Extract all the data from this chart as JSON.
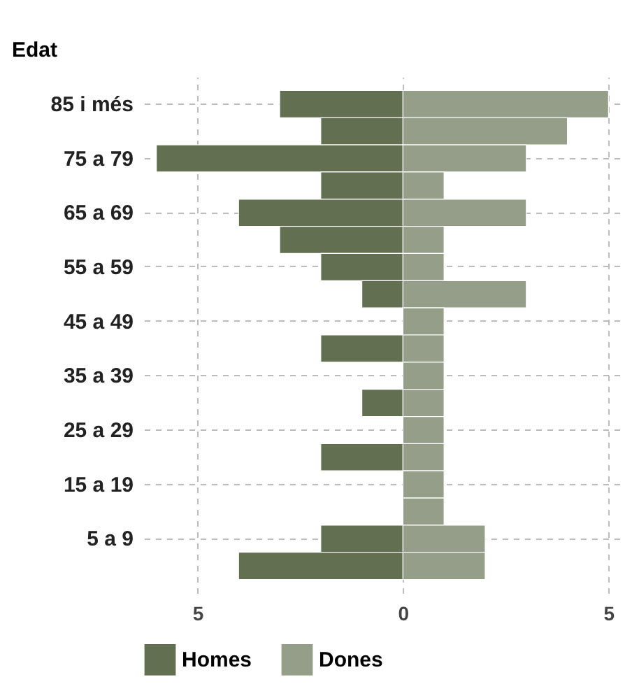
{
  "chart_data": {
    "type": "bar",
    "orientation": "horizontal",
    "ylabel": "Edat",
    "categories": [
      "85 i més",
      null,
      "75 a 79",
      null,
      "65 a 69",
      null,
      "55 a 59",
      null,
      "45 a 49",
      null,
      "35 a 39",
      null,
      "25 a 29",
      null,
      "15 a 19",
      null,
      "5 a 9",
      null
    ],
    "series": [
      {
        "name": "Homes",
        "color": "#636f51",
        "values": [
          -3,
          -2,
          -6,
          -2,
          -4,
          -3,
          -2,
          -1,
          null,
          -2,
          null,
          -1,
          null,
          -2,
          null,
          null,
          -2,
          -4
        ]
      },
      {
        "name": "Dones",
        "color": "#959e88",
        "values": [
          5,
          4,
          3,
          1,
          3,
          1,
          1,
          3,
          1,
          1,
          1,
          1,
          1,
          1,
          1,
          1,
          2,
          2
        ]
      }
    ],
    "xlim": [
      -6.3,
      5.3
    ],
    "xticks": [
      {
        "value": -5,
        "label": "5"
      },
      0,
      5
    ],
    "stacked": true,
    "grid": true,
    "legend": "bottom left"
  }
}
